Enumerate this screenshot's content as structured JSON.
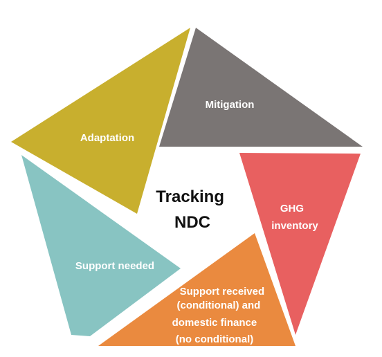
{
  "center": {
    "lines": [
      "Tracking",
      "NDC"
    ]
  },
  "segments": {
    "mitigation": {
      "label_lines": [
        "Mitigation"
      ],
      "color": "#7a7574"
    },
    "adaptation": {
      "label_lines": [
        "Adaptation"
      ],
      "color": "#c8af2e"
    },
    "ghg_inventory": {
      "label_lines": [
        "GHG",
        "inventory"
      ],
      "color": "#e86060"
    },
    "support_needed": {
      "label_lines": [
        "Support needed"
      ],
      "color": "#88c4c2"
    },
    "support_received": {
      "label_lines": [
        "Support received",
        "(conditional) and",
        "domestic finance",
        "(no conditional)"
      ],
      "color": "#ea8a3f"
    }
  }
}
